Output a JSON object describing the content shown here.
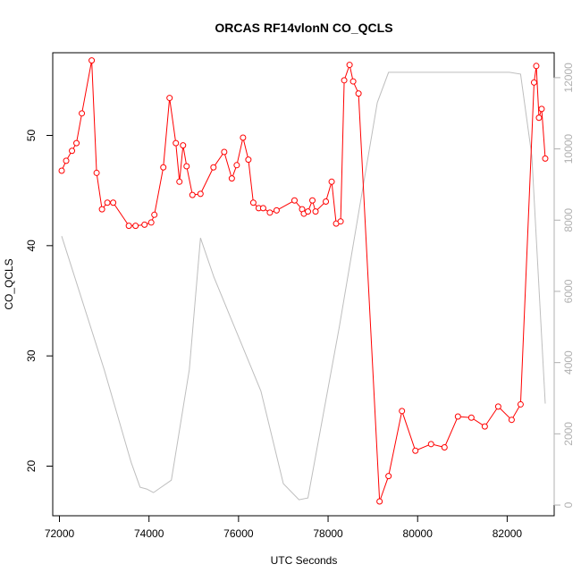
{
  "chart_data": {
    "type": "line",
    "title": "ORCAS RF14vlonN CO_QCLS",
    "xlabel": "UTC Seconds",
    "ylabel": "CO_QCLS",
    "xlim": [
      71850,
      83050
    ],
    "ylim": [
      15.5,
      57.5
    ],
    "y2lim": [
      -300,
      12700
    ],
    "x_ticks": [
      72000,
      74000,
      76000,
      78000,
      80000,
      82000
    ],
    "y_ticks": [
      20,
      30,
      40,
      50
    ],
    "y2_ticks": [
      0,
      2000,
      4000,
      6000,
      8000,
      10000,
      12000
    ],
    "colors": {
      "co": "#ff0000",
      "altitude": "#bebebe"
    },
    "series": [
      {
        "axis": "left",
        "style": "points-and-lines",
        "x": [
          72050,
          72150,
          72280,
          72380,
          72500,
          72720,
          72830,
          72950,
          73070,
          73200,
          73550,
          73700,
          73900,
          74050,
          74120,
          74320,
          74460,
          74600,
          74680,
          74760,
          74840,
          74970,
          75150,
          75440,
          75680,
          75850,
          75960,
          76100,
          76220,
          76330,
          76450,
          76550,
          76700,
          76850,
          77250,
          77420,
          77460,
          77550,
          77650,
          77720,
          77950,
          78080,
          78180,
          78280,
          78360,
          78480,
          78560,
          78680,
          79150,
          79350,
          79650,
          79950,
          80300,
          80600,
          80900,
          81200,
          81500,
          81800,
          82100,
          82300,
          82600,
          82650,
          82710,
          82770,
          82850
        ],
        "values": [
          46.8,
          47.7,
          48.6,
          49.3,
          52.0,
          56.8,
          46.6,
          43.3,
          43.9,
          43.9,
          41.8,
          41.8,
          41.9,
          42.1,
          42.8,
          47.1,
          53.4,
          49.3,
          45.8,
          49.1,
          47.2,
          44.6,
          44.7,
          47.1,
          48.5,
          46.1,
          47.3,
          49.8,
          47.8,
          43.9,
          43.4,
          43.4,
          43.0,
          43.2,
          44.1,
          43.3,
          42.9,
          43.1,
          44.1,
          43.1,
          44.0,
          45.8,
          42.0,
          42.2,
          55.0,
          56.4,
          54.9,
          53.8,
          16.8,
          19.1,
          25.0,
          21.4,
          22.0,
          21.7,
          24.5,
          24.4,
          23.6,
          25.4,
          24.2,
          25.6,
          54.8,
          56.3,
          51.6,
          52.4,
          47.9
        ]
      },
      {
        "axis": "right",
        "style": "line",
        "x": [
          72050,
          73000,
          73600,
          73800,
          73950,
          74100,
          74500,
          74900,
          75150,
          75450,
          76500,
          77000,
          77350,
          77550,
          78250,
          79100,
          79350,
          81400,
          82050,
          82300,
          82550,
          82850
        ],
        "values": [
          7550,
          3800,
          1200,
          500,
          450,
          350,
          700,
          3800,
          7500,
          6400,
          3200,
          600,
          150,
          200,
          5000,
          11300,
          12150,
          12150,
          12150,
          12100,
          9800,
          2850
        ]
      }
    ]
  }
}
